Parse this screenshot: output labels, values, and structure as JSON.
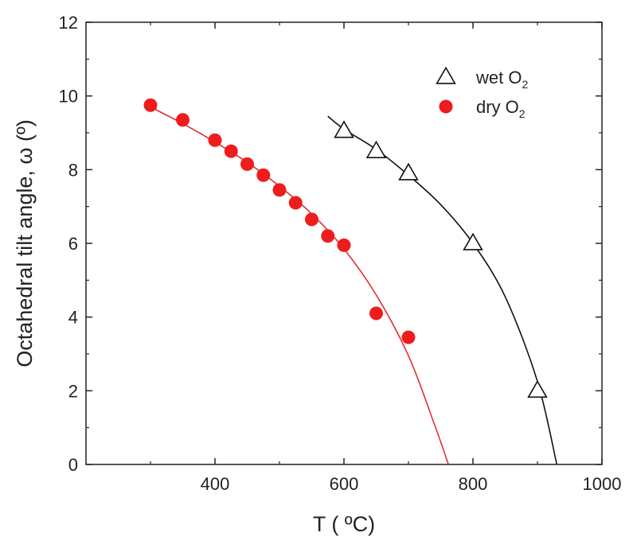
{
  "chart_data": {
    "type": "scatter",
    "xlabel": "T ( ºC)",
    "ylabel": "Octahedral tilt angle, ω (º)",
    "xlim": [
      200,
      1000
    ],
    "ylim": [
      0,
      12
    ],
    "x_ticks": [
      400,
      600,
      800,
      1000
    ],
    "x_minor_ticks": [
      300,
      500,
      700,
      900
    ],
    "y_ticks": [
      0,
      2,
      4,
      6,
      8,
      10,
      12
    ],
    "grid": false,
    "legend_position": "top-right",
    "series": [
      {
        "name": "wet O2",
        "name_main": "wet O",
        "name_sub": "2",
        "marker": "open-triangle",
        "color": "#111111",
        "points": [
          {
            "x": 600,
            "y": 9.05
          },
          {
            "x": 650,
            "y": 8.5
          },
          {
            "x": 700,
            "y": 7.9
          },
          {
            "x": 800,
            "y": 6.0
          },
          {
            "x": 900,
            "y": 2.0
          }
        ],
        "fit_curve": {
          "color": "#111111",
          "points": [
            [
              575,
              9.45
            ],
            [
              600,
              9.1
            ],
            [
              650,
              8.55
            ],
            [
              700,
              7.85
            ],
            [
              750,
              7.05
            ],
            [
              800,
              6.0
            ],
            [
              850,
              4.55
            ],
            [
              900,
              2.25
            ],
            [
              930,
              0.0
            ]
          ]
        }
      },
      {
        "name": "dry O2",
        "name_main": "dry O",
        "name_sub": "2",
        "marker": "filled-circle",
        "color": "#ee1c1c",
        "points": [
          {
            "x": 300,
            "y": 9.75
          },
          {
            "x": 350,
            "y": 9.35
          },
          {
            "x": 400,
            "y": 8.8
          },
          {
            "x": 425,
            "y": 8.5
          },
          {
            "x": 450,
            "y": 8.15
          },
          {
            "x": 475,
            "y": 7.85
          },
          {
            "x": 500,
            "y": 7.45
          },
          {
            "x": 525,
            "y": 7.1
          },
          {
            "x": 550,
            "y": 6.65
          },
          {
            "x": 575,
            "y": 6.2
          },
          {
            "x": 600,
            "y": 5.95
          },
          {
            "x": 650,
            "y": 4.1
          },
          {
            "x": 700,
            "y": 3.45
          }
        ],
        "fit_curve": {
          "color": "#e03030",
          "points": [
            [
              300,
              9.7
            ],
            [
              350,
              9.25
            ],
            [
              400,
              8.75
            ],
            [
              450,
              8.2
            ],
            [
              500,
              7.55
            ],
            [
              550,
              6.8
            ],
            [
              600,
              5.85
            ],
            [
              650,
              4.6
            ],
            [
              700,
              2.95
            ],
            [
              740,
              1.1
            ],
            [
              762,
              0.0
            ]
          ]
        }
      }
    ]
  }
}
